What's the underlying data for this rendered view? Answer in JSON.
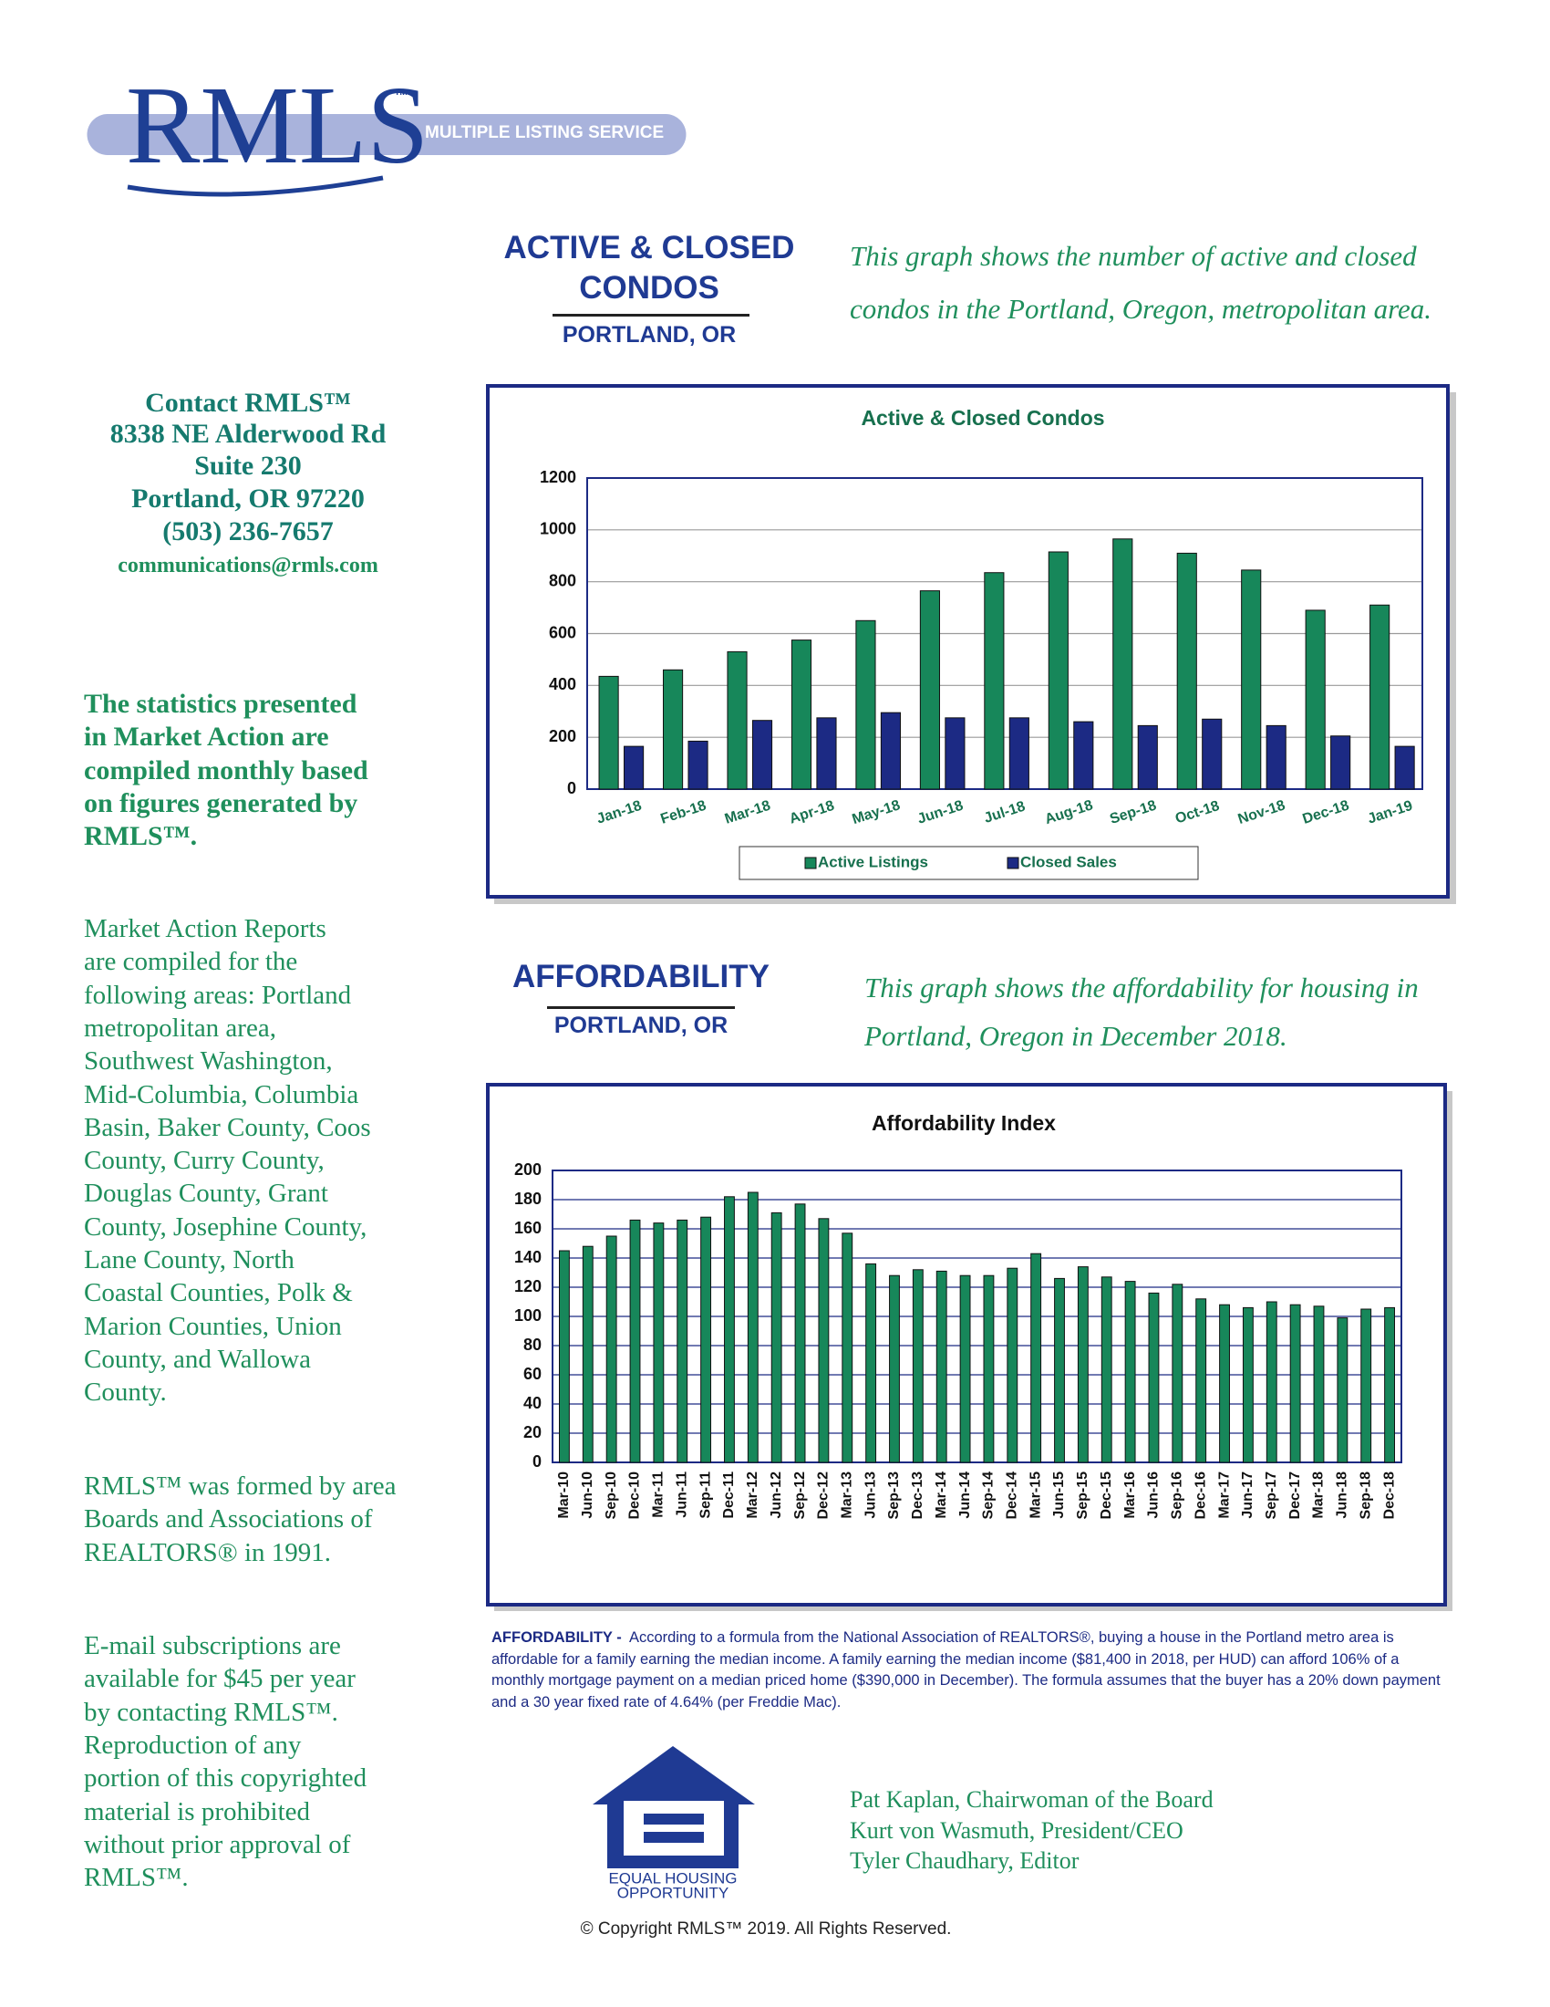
{
  "logo": {
    "name": "RMLS",
    "tm": "™",
    "tagline": "MULTIPLE LISTING SERVICE"
  },
  "contact": {
    "lines": [
      "Contact RMLS™",
      "8338 NE Alderwood Rd",
      "Suite 230",
      "Portland, OR 97220",
      "(503) 236-7657"
    ],
    "email": "communications@rmls.com"
  },
  "sidebar": [
    {
      "lines": [
        "The statistics presented",
        "in Market Action are",
        "compiled monthly based",
        "on figures generated by",
        "RMLS™."
      ]
    },
    {
      "lines": [
        "Market Action Reports",
        "are compiled for the",
        "following areas: Portland",
        "metropolitan area,",
        "Southwest Washington,",
        "Mid-Columbia, Columbia",
        "Basin, Baker County, Coos",
        "County, Curry County,",
        "Douglas County, Grant",
        "County, Josephine County,",
        "Lane County, North",
        "Coastal Counties, Polk &",
        "Marion Counties, Union",
        "County, and Wallowa",
        "County."
      ]
    },
    {
      "lines": [
        "RMLS™ was formed by area",
        "Boards and Associations of",
        "REALTORS® in 1991."
      ]
    },
    {
      "lines": [
        "E-mail subscriptions are",
        "available for $45 per year",
        "by contacting RMLS™.",
        "Reproduction of any",
        "portion of this copyrighted",
        "material is prohibited",
        "without prior approval of",
        "RMLS™."
      ]
    }
  ],
  "sections": [
    {
      "title_lines": [
        "ACTIVE & CLOSED",
        "CONDOS"
      ],
      "subtitle": "PORTLAND, OR",
      "description_lines": [
        "This graph shows the number of active and closed",
        "condos in the Portland, Oregon, metropolitan area."
      ]
    },
    {
      "title_lines": [
        "AFFORDABILITY"
      ],
      "subtitle": "PORTLAND, OR",
      "description_lines": [
        "This graph shows the affordability for housing in",
        "Portland, Oregon in December 2018."
      ]
    }
  ],
  "chart_data": [
    {
      "type": "bar",
      "title": "Active & Closed Condos",
      "categories": [
        "Jan-18",
        "Feb-18",
        "Mar-18",
        "Apr-18",
        "May-18",
        "Jun-18",
        "Jul-18",
        "Aug-18",
        "Sep-18",
        "Oct-18",
        "Nov-18",
        "Dec-18",
        "Jan-19"
      ],
      "series": [
        {
          "name": "Active Listings",
          "color": "#17875a",
          "values": [
            435,
            460,
            530,
            575,
            650,
            765,
            835,
            915,
            965,
            910,
            845,
            690,
            710
          ]
        },
        {
          "name": "Closed Sales",
          "color": "#1c2a84",
          "values": [
            165,
            185,
            265,
            275,
            295,
            275,
            275,
            260,
            245,
            270,
            245,
            205,
            165
          ]
        }
      ],
      "ylim": [
        0,
        1200
      ],
      "yticks": [
        0,
        200,
        400,
        600,
        800,
        1000,
        1200
      ],
      "grid": true,
      "legend": "bottom"
    },
    {
      "type": "bar",
      "title": "Affordability Index",
      "categories": [
        "Mar-10",
        "Jun-10",
        "Sep-10",
        "Dec-10",
        "Mar-11",
        "Jun-11",
        "Sep-11",
        "Dec-11",
        "Mar-12",
        "Jun-12",
        "Sep-12",
        "Dec-12",
        "Mar-13",
        "Jun-13",
        "Sep-13",
        "Dec-13",
        "Mar-14",
        "Jun-14",
        "Sep-14",
        "Dec-14",
        "Mar-15",
        "Jun-15",
        "Sep-15",
        "Dec-15",
        "Mar-16",
        "Jun-16",
        "Sep-16",
        "Dec-16",
        "Mar-17",
        "Jun-17",
        "Sep-17",
        "Dec-17",
        "Mar-18",
        "Jun-18",
        "Sep-18",
        "Dec-18"
      ],
      "values": [
        145,
        148,
        155,
        166,
        164,
        166,
        168,
        182,
        185,
        171,
        177,
        167,
        157,
        136,
        128,
        132,
        131,
        128,
        128,
        133,
        143,
        126,
        134,
        127,
        124,
        116,
        122,
        112,
        108,
        106,
        110,
        108,
        107,
        99,
        105,
        106
      ],
      "color": "#17875a",
      "ylim": [
        0,
        200
      ],
      "yticks": [
        0,
        20,
        40,
        60,
        80,
        100,
        120,
        140,
        160,
        180,
        200
      ],
      "grid": true
    }
  ],
  "footnote": {
    "label": "AFFORDABILITY -",
    "text": "According to a formula from the National Association of REALTORS®, buying a house in the Portland metro area is affordable for a family earning the median income. A family earning the median income ($81,400 in 2018, per HUD) can afford 106% of a monthly mortgage payment on a median priced home ($390,000 in December). The formula assumes that the buyer has a 20% down payment and a 30 year fixed rate of 4.64% (per Freddie Mac)."
  },
  "eho": {
    "lines": [
      "EQUAL HOUSING",
      "OPPORTUNITY"
    ]
  },
  "staff": [
    "Pat Kaplan, Chairwoman of the Board",
    "Kurt von Wasmuth, President/CEO",
    "Tyler Chaudhary, Editor"
  ],
  "copyright": "© Copyright RMLS™ 2019. All Rights Reserved."
}
